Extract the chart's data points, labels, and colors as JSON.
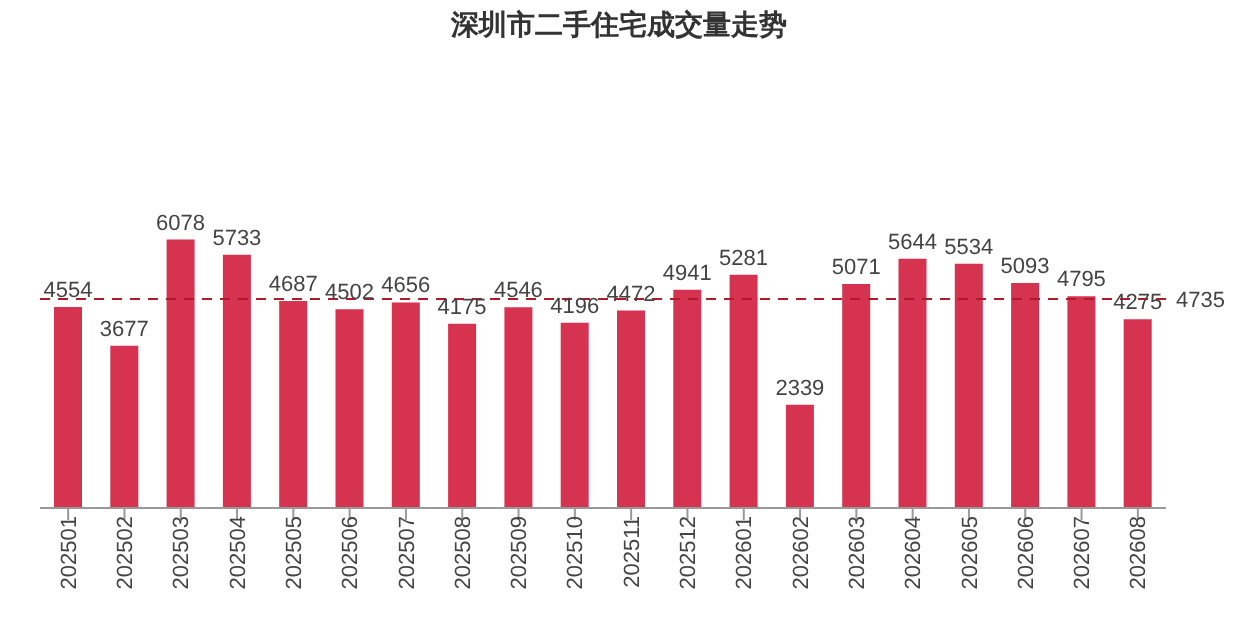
{
  "chart_data": {
    "type": "bar",
    "title": "深圳市二手住宅成交量走势",
    "categories": [
      "202501",
      "202502",
      "202503",
      "202504",
      "202505",
      "202506",
      "202507",
      "202508",
      "202509",
      "202510",
      "202511",
      "202512",
      "202601",
      "202602",
      "202603",
      "202604",
      "202605",
      "202606",
      "202607",
      "202608"
    ],
    "values": [
      4554,
      3677,
      6078,
      5733,
      4687,
      4502,
      4656,
      4175,
      4546,
      4196,
      4472,
      4941,
      5281,
      2339,
      5071,
      5644,
      5534,
      5093,
      4795,
      4275
    ],
    "color": "#d5334f",
    "data_labels": true,
    "ref_lines": [
      {
        "axis": "y",
        "value": 4735,
        "label": "4735",
        "color": "#b3192b",
        "line_style": "dashed"
      }
    ]
  }
}
